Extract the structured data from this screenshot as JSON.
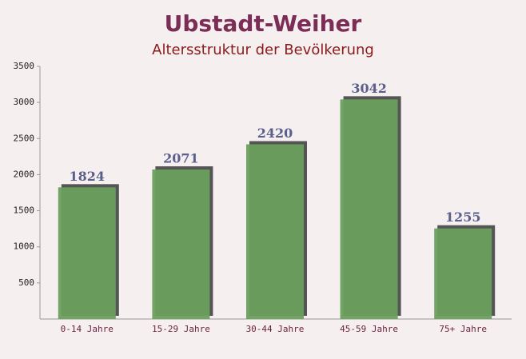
{
  "chart_data": {
    "type": "bar",
    "title": "Ubstadt-Weiher",
    "subtitle": "Altersstruktur der Bevölkerung",
    "categories": [
      "0-14 Jahre",
      "15-29 Jahre",
      "30-44 Jahre",
      "45-59 Jahre",
      "75+ Jahre"
    ],
    "values": [
      1824,
      2071,
      2420,
      3042,
      1255
    ],
    "color": "#6a9f5e",
    "ylim": [
      0,
      3500
    ],
    "yticks": [
      500,
      1000,
      1500,
      2000,
      2500,
      3000,
      3500
    ],
    "grid": false
  }
}
